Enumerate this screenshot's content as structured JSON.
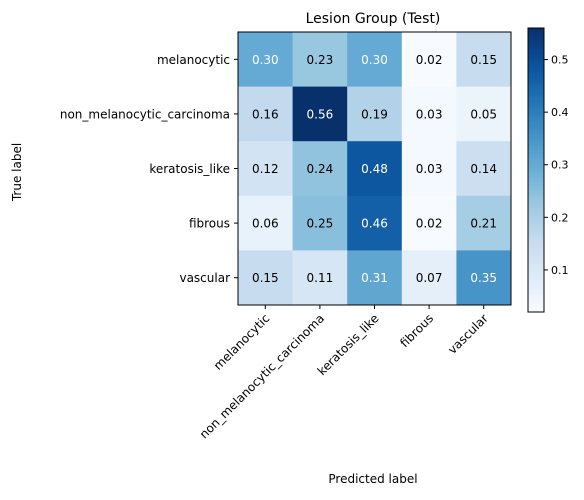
{
  "chart_data": {
    "type": "heatmap",
    "title": "Lesion Group (Test)",
    "xlabel": "Predicted label",
    "ylabel": "True label",
    "row_labels": [
      "melanocytic",
      "non_melanocytic_carcinoma",
      "keratosis_like",
      "fibrous",
      "vascular"
    ],
    "col_labels": [
      "melanocytic",
      "non_melanocytic_carcinoma",
      "keratosis_like",
      "fibrous",
      "vascular"
    ],
    "values": [
      [
        0.3,
        0.23,
        0.3,
        0.02,
        0.15
      ],
      [
        0.16,
        0.56,
        0.19,
        0.03,
        0.05
      ],
      [
        0.12,
        0.24,
        0.48,
        0.03,
        0.14
      ],
      [
        0.06,
        0.25,
        0.46,
        0.02,
        0.21
      ],
      [
        0.15,
        0.11,
        0.31,
        0.07,
        0.35
      ]
    ],
    "colormap": "Blues",
    "colorbar": {
      "range": [
        0.02,
        0.56
      ],
      "ticks": [
        0.1,
        0.2,
        0.3,
        0.4,
        0.5
      ],
      "tick_labels": [
        "0.1",
        "0.2",
        "0.3",
        "0.4",
        "0.5"
      ]
    }
  }
}
